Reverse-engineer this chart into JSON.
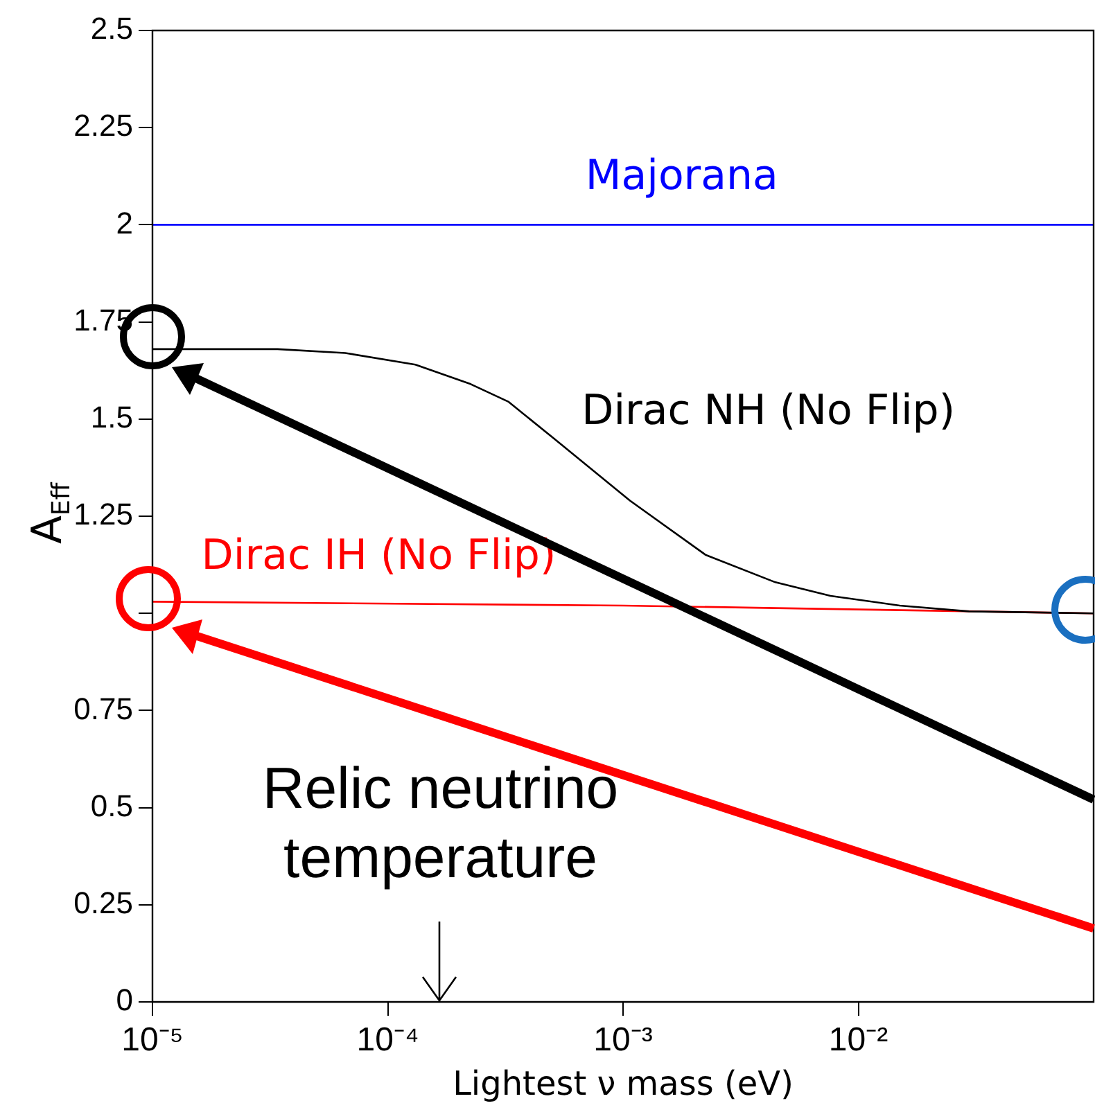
{
  "chart_data": {
    "type": "line",
    "xlabel": "Lightest ν mass (eV)",
    "ylabel": "A$_{Eff}$",
    "log": "x",
    "grid": false,
    "legend": false,
    "marker": "none",
    "line_style": "solid",
    "xlim": [
      1e-05,
      0.1
    ],
    "xticks": [
      {
        "value": 1e-05,
        "label": "10⁻⁵"
      },
      {
        "value": 0.0001,
        "label": "10⁻⁴"
      },
      {
        "value": 0.001,
        "label": "10⁻³"
      },
      {
        "value": 0.01,
        "label": "10⁻²"
      }
    ],
    "ylim": [
      0,
      2.5
    ],
    "yticks": [
      0,
      0.25,
      0.5,
      0.75,
      {
        "value": 1,
        "label": null
      },
      1.25,
      1.5,
      1.75,
      2,
      2.25,
      2.5
    ],
    "series": [
      {
        "name": "Majorana",
        "color": "#0000ff",
        "x": [
          1e-05,
          0.1
        ],
        "values": [
          2,
          2
        ]
      },
      {
        "name": "Dirac NH (No Flip)",
        "color": "#000000",
        "x": [
          1e-05,
          3.4e-05,
          6.6e-05,
          0.000131,
          0.000225,
          0.000325,
          0.000508,
          0.00107,
          0.00225,
          0.00444,
          0.00762,
          0.015,
          0.0295,
          0.1
        ],
        "values": [
          1.68,
          1.68,
          1.67,
          1.64,
          1.59,
          1.545,
          1.45,
          1.29,
          1.15,
          1.08,
          1.045,
          1.02,
          1.005,
          1.0
        ]
      },
      {
        "name": "Dirac IH (No Flip)",
        "color": "#ff0000",
        "x": [
          1e-05,
          0.001,
          0.01,
          0.1
        ],
        "values": [
          1.03,
          1.02,
          1.01,
          1.0
        ]
      }
    ],
    "annotations": [
      "Relic neutrino temperature"
    ]
  }
}
